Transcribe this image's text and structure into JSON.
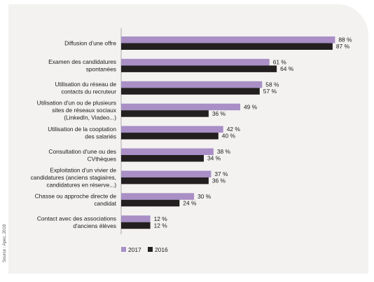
{
  "source": "Source : Apec, 2018",
  "chart_data": {
    "type": "bar",
    "orientation": "horizontal",
    "categories": [
      [
        "Diffusion d'une offre"
      ],
      [
        "Examen des candidatures",
        "spontanées"
      ],
      [
        "Utilisation du réseau de",
        "contacts du recruteur"
      ],
      [
        "Utilisation d'un ou de plusieurs",
        "sites de réseaux sociaux",
        "(LinkedIn, Viadeo...)"
      ],
      [
        "Utilisation de la cooptation",
        "des salariés"
      ],
      [
        "Consultation d'une ou des",
        "CVthèques"
      ],
      [
        "Exploitation d'un vivier de",
        "candidatures (anciens stagiaires,",
        "candidatures en réserve...)"
      ],
      [
        "Chasse ou approche directe de",
        "candidat"
      ],
      [
        "Contact avec des associations",
        "d'anciens élèves"
      ]
    ],
    "series": [
      {
        "name": "2017",
        "color": "#a98fc6",
        "values": [
          88,
          61,
          58,
          49,
          42,
          38,
          37,
          30,
          12
        ]
      },
      {
        "name": "2016",
        "color": "#231f20",
        "values": [
          87,
          64,
          57,
          36,
          40,
          34,
          36,
          24,
          12
        ]
      }
    ],
    "value_suffix": " %",
    "xlim": [
      0,
      100
    ],
    "legend_position": "bottom-left",
    "grid": false
  }
}
